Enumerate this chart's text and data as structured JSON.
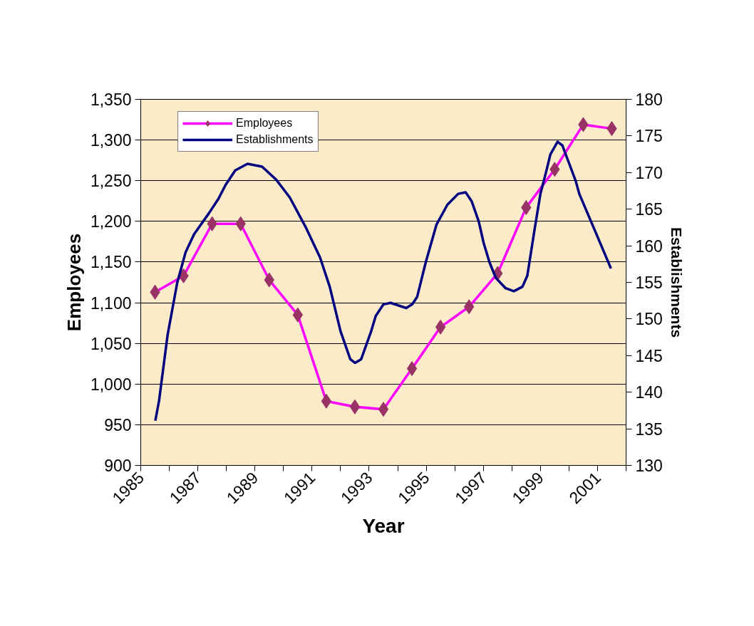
{
  "chart_data": {
    "type": "line",
    "xlabel": "Year",
    "ylabel": "Employees",
    "y2label": "Establishments",
    "xlim": [
      1985,
      2002
    ],
    "xticks": [
      1985,
      {
        "value": 1986,
        "label": null
      },
      1987,
      {
        "value": 1988,
        "label": null
      },
      1989,
      {
        "value": 1990,
        "label": null
      },
      1991,
      {
        "value": 1992,
        "label": null
      },
      1993,
      {
        "value": 1994,
        "label": null
      },
      1995,
      {
        "value": 1996,
        "label": null
      },
      1997,
      {
        "value": 1998,
        "label": null
      },
      1999,
      {
        "value": 2000,
        "label": null
      },
      2001,
      {
        "value": 2002,
        "label": null
      }
    ],
    "ylim": [
      900,
      1350
    ],
    "yticks": [
      900,
      950,
      {
        "value": 1000,
        "label": "1,000"
      },
      {
        "value": 1050,
        "label": "1,050"
      },
      {
        "value": 1100,
        "label": "1,100"
      },
      {
        "value": 1150,
        "label": "1,150"
      },
      {
        "value": 1200,
        "label": "1,200"
      },
      {
        "value": 1250,
        "label": "1,250"
      },
      {
        "value": 1300,
        "label": "1,300"
      },
      {
        "value": 1350,
        "label": "1,350"
      }
    ],
    "y2lim": [
      130,
      180
    ],
    "y2ticks": [
      130,
      135,
      140,
      145,
      150,
      155,
      160,
      165,
      170,
      175,
      180
    ],
    "grid": "y",
    "legend": "top left",
    "series": [
      {
        "name": "Employees",
        "color": "#ff00ff",
        "marker": "diamond",
        "x": [
          1985.5,
          1986.5,
          1987.5,
          1988.5,
          1989.5,
          1990.5,
          1991.5,
          1992.5,
          1993.5,
          1994.5,
          1995.5,
          1996.5,
          1997.5,
          1998.5,
          1999.5,
          2000.5,
          2001.5
        ],
        "values": [
          1113,
          1133,
          1197,
          1197,
          1128,
          1085,
          979,
          972,
          969,
          1019,
          1070,
          1095,
          1136,
          1217,
          1264,
          1319,
          1314
        ],
        "colors": [
          "#993366",
          "#993366",
          "#993366",
          "#993366",
          "#993366",
          "#993366",
          "#993366",
          "#993366",
          "#993366",
          "#993366",
          "#993366",
          "#993366",
          "#993366",
          "#993366",
          "#993366",
          "#993366",
          "#993366"
        ]
      },
      {
        "name": "Establishments",
        "color": "#000080",
        "axis": "y2",
        "marker": "none",
        "x": [
          1985.51,
          1985.64,
          1985.94,
          1986.28,
          1986.57,
          1986.87,
          1987.38,
          1987.72,
          1987.97,
          1988.31,
          1988.74,
          1989.25,
          1989.75,
          1990.22,
          1990.77,
          1991.28,
          1991.62,
          1992.0,
          1992.34,
          1992.51,
          1992.72,
          1993.06,
          1993.23,
          1993.5,
          1993.75,
          1994.3,
          1994.51,
          1994.68,
          1994.98,
          1995.36,
          1995.74,
          1996.12,
          1996.38,
          1996.59,
          1996.84,
          1997.01,
          1997.22,
          1997.44,
          1997.78,
          1998.07,
          1998.37,
          1998.54,
          1998.79,
          1999.0,
          1999.18,
          1999.35,
          1999.6,
          1999.77,
          2000.02,
          2000.24,
          2000.36,
          2000.96,
          2001.47
        ],
        "values": [
          136.1,
          138.8,
          147.8,
          155.0,
          159.1,
          161.6,
          164.4,
          166.4,
          168.3,
          170.3,
          171.2,
          170.8,
          169.0,
          166.6,
          162.6,
          158.4,
          154.4,
          148.3,
          144.5,
          144.0,
          144.5,
          148.2,
          150.4,
          152.0,
          152.2,
          151.5,
          152.0,
          153.0,
          157.7,
          162.9,
          165.6,
          167.1,
          167.3,
          166.1,
          163.3,
          160.4,
          157.7,
          155.6,
          154.2,
          153.8,
          154.4,
          155.9,
          162.1,
          167.1,
          169.8,
          172.5,
          174.2,
          173.7,
          171.1,
          168.8,
          167.1,
          161.6,
          156.9
        ]
      }
    ]
  }
}
